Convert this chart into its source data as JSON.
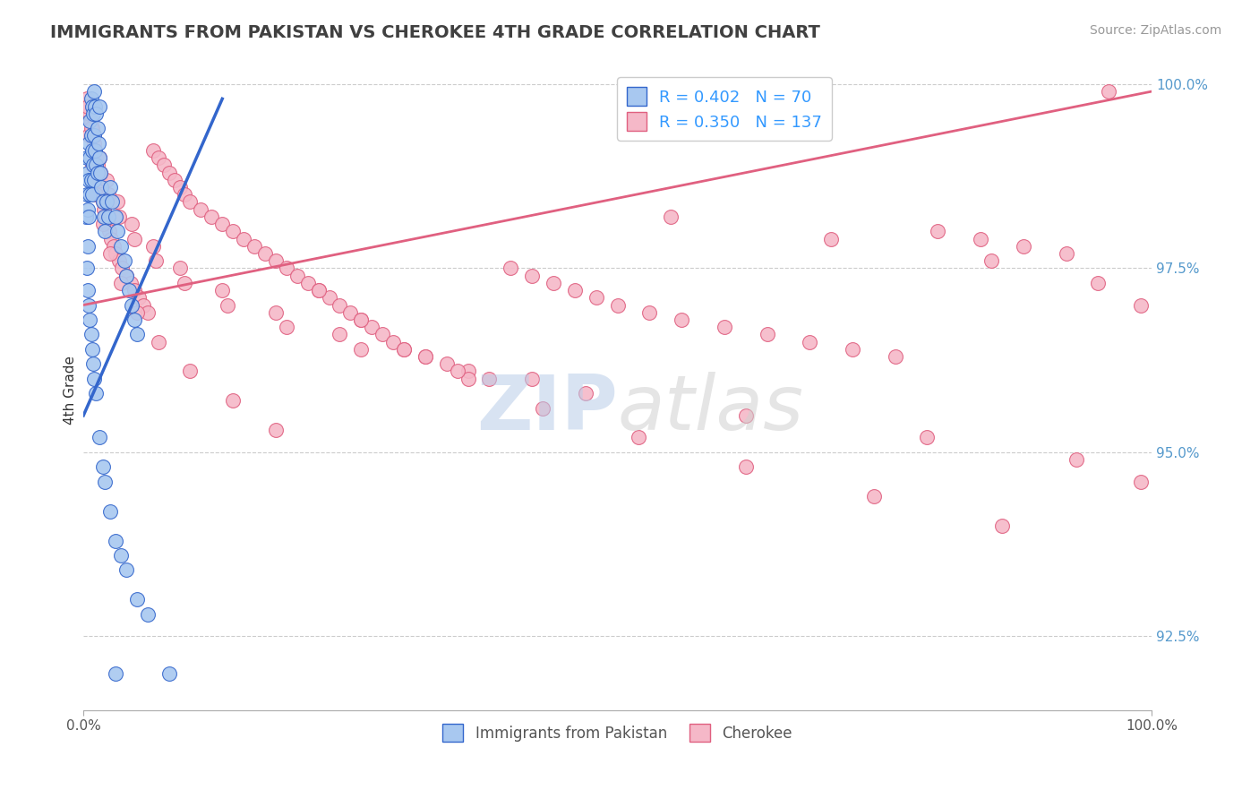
{
  "title": "IMMIGRANTS FROM PAKISTAN VS CHEROKEE 4TH GRADE CORRELATION CHART",
  "source": "Source: ZipAtlas.com",
  "ylabel": "4th Grade",
  "xlim": [
    0.0,
    1.0
  ],
  "ylim": [
    0.915,
    1.002
  ],
  "ytick_labels": [
    "92.5%",
    "95.0%",
    "97.5%",
    "100.0%"
  ],
  "ytick_values": [
    0.925,
    0.95,
    0.975,
    1.0
  ],
  "xtick_labels": [
    "0.0%",
    "100.0%"
  ],
  "xtick_values": [
    0.0,
    1.0
  ],
  "r_blue": 0.402,
  "n_blue": 70,
  "r_pink": 0.35,
  "n_pink": 137,
  "legend_label_blue": "Immigrants from Pakistan",
  "legend_label_pink": "Cherokee",
  "blue_color": "#a8c8f0",
  "pink_color": "#f5b8c8",
  "blue_line_color": "#3366cc",
  "pink_line_color": "#e06080",
  "blue_line": {
    "x0": 0.0,
    "x1": 0.13,
    "y0": 0.955,
    "y1": 0.998
  },
  "pink_line": {
    "x0": 0.0,
    "x1": 1.0,
    "y0": 0.97,
    "y1": 0.999
  },
  "watermark_zip": "ZIP",
  "watermark_atlas": "atlas",
  "blue_x": [
    0.002,
    0.003,
    0.003,
    0.004,
    0.004,
    0.004,
    0.005,
    0.005,
    0.005,
    0.006,
    0.006,
    0.006,
    0.007,
    0.007,
    0.007,
    0.008,
    0.008,
    0.008,
    0.009,
    0.009,
    0.01,
    0.01,
    0.01,
    0.011,
    0.011,
    0.012,
    0.012,
    0.013,
    0.013,
    0.014,
    0.015,
    0.015,
    0.016,
    0.017,
    0.018,
    0.019,
    0.02,
    0.022,
    0.023,
    0.025,
    0.027,
    0.03,
    0.032,
    0.035,
    0.038,
    0.04,
    0.043,
    0.045,
    0.048,
    0.05,
    0.003,
    0.004,
    0.005,
    0.006,
    0.007,
    0.008,
    0.009,
    0.01,
    0.012,
    0.015,
    0.018,
    0.02,
    0.025,
    0.03,
    0.035,
    0.04,
    0.05,
    0.06,
    0.08,
    0.03
  ],
  "blue_y": [
    0.982,
    0.99,
    0.985,
    0.988,
    0.983,
    0.978,
    0.992,
    0.987,
    0.982,
    0.995,
    0.99,
    0.985,
    0.998,
    0.993,
    0.987,
    0.997,
    0.991,
    0.985,
    0.996,
    0.989,
    0.999,
    0.993,
    0.987,
    0.997,
    0.991,
    0.996,
    0.989,
    0.994,
    0.988,
    0.992,
    0.997,
    0.99,
    0.988,
    0.986,
    0.984,
    0.982,
    0.98,
    0.984,
    0.982,
    0.986,
    0.984,
    0.982,
    0.98,
    0.978,
    0.976,
    0.974,
    0.972,
    0.97,
    0.968,
    0.966,
    0.975,
    0.972,
    0.97,
    0.968,
    0.966,
    0.964,
    0.962,
    0.96,
    0.958,
    0.952,
    0.948,
    0.946,
    0.942,
    0.938,
    0.936,
    0.934,
    0.93,
    0.928,
    0.92,
    0.92
  ],
  "pink_x": [
    0.003,
    0.005,
    0.006,
    0.007,
    0.008,
    0.009,
    0.01,
    0.011,
    0.012,
    0.013,
    0.014,
    0.015,
    0.016,
    0.017,
    0.018,
    0.019,
    0.02,
    0.022,
    0.024,
    0.026,
    0.028,
    0.03,
    0.033,
    0.036,
    0.04,
    0.044,
    0.048,
    0.052,
    0.056,
    0.06,
    0.065,
    0.07,
    0.075,
    0.08,
    0.085,
    0.09,
    0.095,
    0.1,
    0.11,
    0.12,
    0.13,
    0.14,
    0.15,
    0.16,
    0.17,
    0.18,
    0.19,
    0.2,
    0.21,
    0.22,
    0.23,
    0.24,
    0.25,
    0.26,
    0.27,
    0.28,
    0.29,
    0.3,
    0.32,
    0.34,
    0.36,
    0.38,
    0.4,
    0.42,
    0.44,
    0.46,
    0.48,
    0.5,
    0.53,
    0.56,
    0.6,
    0.64,
    0.68,
    0.72,
    0.76,
    0.8,
    0.84,
    0.88,
    0.92,
    0.96,
    0.005,
    0.008,
    0.012,
    0.018,
    0.025,
    0.035,
    0.05,
    0.07,
    0.1,
    0.14,
    0.18,
    0.22,
    0.26,
    0.3,
    0.36,
    0.43,
    0.52,
    0.62,
    0.74,
    0.86,
    0.006,
    0.01,
    0.015,
    0.022,
    0.032,
    0.045,
    0.065,
    0.09,
    0.13,
    0.18,
    0.24,
    0.32,
    0.42,
    0.55,
    0.7,
    0.85,
    0.95,
    0.99,
    0.004,
    0.007,
    0.011,
    0.016,
    0.023,
    0.033,
    0.048,
    0.068,
    0.095,
    0.135,
    0.19,
    0.26,
    0.35,
    0.47,
    0.62,
    0.79,
    0.93,
    0.99
  ],
  "pink_y": [
    0.998,
    0.997,
    0.996,
    0.995,
    0.994,
    0.993,
    0.992,
    0.991,
    0.99,
    0.989,
    0.988,
    0.987,
    0.986,
    0.985,
    0.984,
    0.983,
    0.982,
    0.981,
    0.98,
    0.979,
    0.978,
    0.977,
    0.976,
    0.975,
    0.974,
    0.973,
    0.972,
    0.971,
    0.97,
    0.969,
    0.991,
    0.99,
    0.989,
    0.988,
    0.987,
    0.986,
    0.985,
    0.984,
    0.983,
    0.982,
    0.981,
    0.98,
    0.979,
    0.978,
    0.977,
    0.976,
    0.975,
    0.974,
    0.973,
    0.972,
    0.971,
    0.97,
    0.969,
    0.968,
    0.967,
    0.966,
    0.965,
    0.964,
    0.963,
    0.962,
    0.961,
    0.96,
    0.975,
    0.974,
    0.973,
    0.972,
    0.971,
    0.97,
    0.969,
    0.968,
    0.967,
    0.966,
    0.965,
    0.964,
    0.963,
    0.98,
    0.979,
    0.978,
    0.977,
    0.999,
    0.993,
    0.989,
    0.985,
    0.981,
    0.977,
    0.973,
    0.969,
    0.965,
    0.961,
    0.957,
    0.953,
    0.972,
    0.968,
    0.964,
    0.96,
    0.956,
    0.952,
    0.948,
    0.944,
    0.94,
    0.996,
    0.993,
    0.99,
    0.987,
    0.984,
    0.981,
    0.978,
    0.975,
    0.972,
    0.969,
    0.966,
    0.963,
    0.96,
    0.982,
    0.979,
    0.976,
    0.973,
    0.97,
    0.997,
    0.994,
    0.991,
    0.988,
    0.985,
    0.982,
    0.979,
    0.976,
    0.973,
    0.97,
    0.967,
    0.964,
    0.961,
    0.958,
    0.955,
    0.952,
    0.949,
    0.946
  ]
}
